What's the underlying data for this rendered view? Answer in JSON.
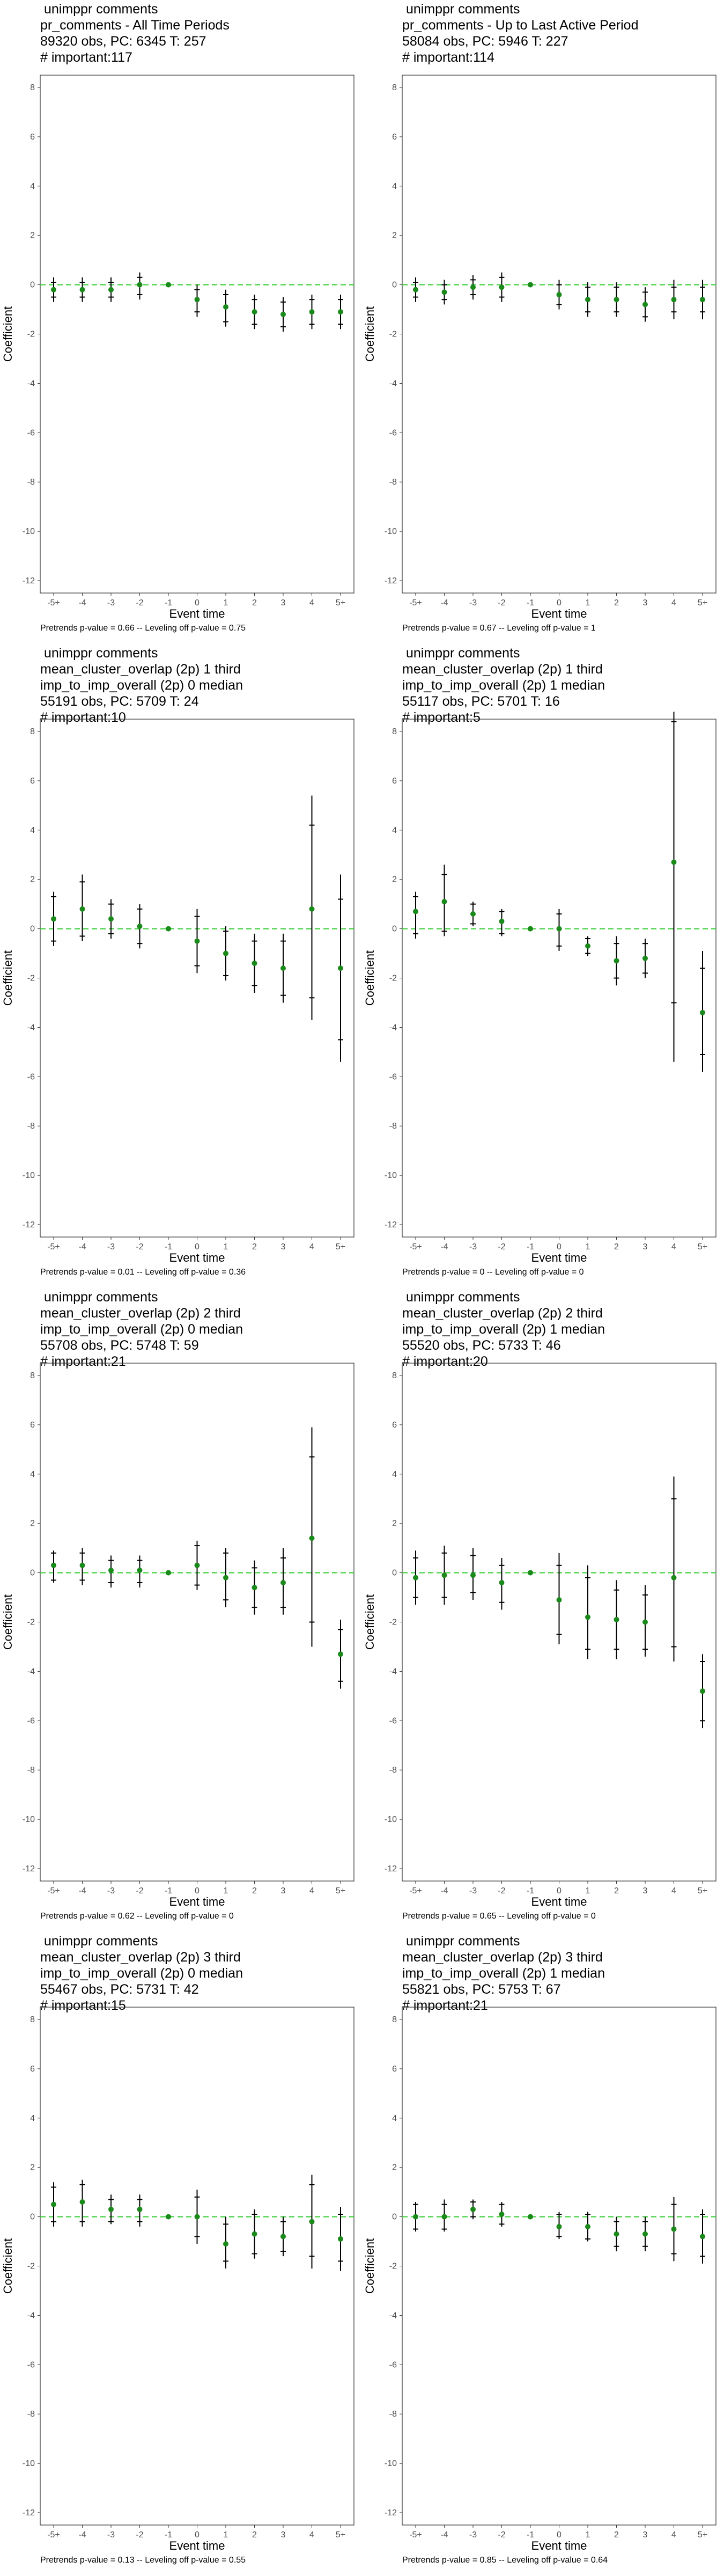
{
  "chart_data": [
    {
      "type": "scatter",
      "title": [
        " unimppr comments",
        "pr_comments - All Time Periods",
        "89320 obs, PC: 6345 T: 257",
        "# important:117"
      ],
      "footer": "Pretrends p-value = 0.66 -- Leveling off p-value = 0.75",
      "xlabel": "Event time",
      "ylabel": "Coefficient",
      "categories": [
        "-5+",
        "-4",
        "-3",
        "-2",
        "-1",
        "0",
        "1",
        "2",
        "3",
        "4",
        "5+"
      ],
      "yticks": [
        8,
        6,
        4,
        2,
        0,
        -2,
        -4,
        -6,
        -8,
        -10,
        -12
      ],
      "ylim": [
        -12.5,
        8.5
      ],
      "values": [
        -0.2,
        -0.2,
        -0.2,
        0.0,
        0.0,
        -0.6,
        -0.9,
        -1.1,
        -1.2,
        -1.1,
        -1.1
      ],
      "ci_low": [
        -0.7,
        -0.7,
        -0.7,
        -0.6,
        0.0,
        -1.3,
        -1.7,
        -1.8,
        -1.9,
        -1.8,
        -1.8
      ],
      "ci_high": [
        0.3,
        0.3,
        0.3,
        0.5,
        0.0,
        0.0,
        -0.2,
        -0.4,
        -0.5,
        -0.4,
        -0.4
      ],
      "ci90_low": [
        -0.5,
        -0.5,
        -0.5,
        -0.4,
        0.0,
        -1.1,
        -1.5,
        -1.6,
        -1.7,
        -1.6,
        -1.6
      ],
      "ci90_high": [
        0.1,
        0.1,
        0.1,
        0.3,
        0.0,
        -0.2,
        -0.4,
        -0.6,
        -0.7,
        -0.6,
        -0.6
      ],
      "reference_line": 0,
      "grid": false
    },
    {
      "type": "scatter",
      "title": [
        " unimppr comments",
        "pr_comments - Up to Last Active Period",
        "58084 obs, PC: 5946 T: 227",
        "# important:114"
      ],
      "footer": "Pretrends p-value = 0.67 -- Leveling off p-value = 1",
      "xlabel": "Event time",
      "ylabel": "Coefficient",
      "categories": [
        "-5+",
        "-4",
        "-3",
        "-2",
        "-1",
        "0",
        "1",
        "2",
        "3",
        "4",
        "5+"
      ],
      "yticks": [
        8,
        6,
        4,
        2,
        0,
        -2,
        -4,
        -6,
        -8,
        -10,
        -12
      ],
      "ylim": [
        -12.5,
        8.5
      ],
      "values": [
        -0.2,
        -0.3,
        -0.1,
        -0.1,
        0.0,
        -0.4,
        -0.6,
        -0.6,
        -0.8,
        -0.6,
        -0.6
      ],
      "ci_low": [
        -0.7,
        -0.8,
        -0.6,
        -0.7,
        0.0,
        -1.0,
        -1.3,
        -1.3,
        -1.5,
        -1.4,
        -1.4
      ],
      "ci_high": [
        0.3,
        0.2,
        0.4,
        0.5,
        0.0,
        0.2,
        0.1,
        0.1,
        -0.1,
        0.2,
        0.2
      ],
      "ci90_low": [
        -0.5,
        -0.6,
        -0.4,
        -0.5,
        0.0,
        -0.8,
        -1.1,
        -1.1,
        -1.3,
        -1.1,
        -1.1
      ],
      "ci90_high": [
        0.1,
        0.0,
        0.2,
        0.3,
        0.0,
        0.0,
        -0.1,
        -0.1,
        -0.3,
        -0.1,
        -0.1
      ],
      "reference_line": 0,
      "grid": false
    },
    {
      "type": "scatter",
      "title": [
        " unimppr comments",
        "mean_cluster_overlap (2p) 1 third",
        "imp_to_imp_overall (2p) 0 median",
        "55191 obs, PC: 5709 T: 24",
        "# important:10"
      ],
      "footer": "Pretrends p-value = 0.01 -- Leveling off p-value = 0.36",
      "xlabel": "Event time",
      "ylabel": "Coefficient",
      "categories": [
        "-5+",
        "-4",
        "-3",
        "-2",
        "-1",
        "0",
        "1",
        "2",
        "3",
        "4",
        "5+"
      ],
      "yticks": [
        8,
        6,
        4,
        2,
        0,
        -2,
        -4,
        -6,
        -8,
        -10,
        -12
      ],
      "ylim": [
        -12.5,
        8.5
      ],
      "values": [
        0.4,
        0.8,
        0.4,
        0.1,
        0.0,
        -0.5,
        -1.0,
        -1.4,
        -1.6,
        0.8,
        -1.6
      ],
      "ci_low": [
        -0.7,
        -0.5,
        -0.4,
        -0.8,
        0.0,
        -1.8,
        -2.1,
        -2.6,
        -3.0,
        -3.7,
        -5.4
      ],
      "ci_high": [
        1.5,
        2.2,
        1.2,
        1.0,
        0.0,
        0.8,
        0.1,
        -0.2,
        -0.2,
        5.4,
        2.2
      ],
      "ci90_low": [
        -0.5,
        -0.3,
        -0.2,
        -0.6,
        0.0,
        -1.5,
        -1.9,
        -2.3,
        -2.7,
        -2.8,
        -4.5
      ],
      "ci90_high": [
        1.3,
        1.9,
        1.0,
        0.8,
        0.0,
        0.5,
        -0.1,
        -0.5,
        -0.5,
        4.2,
        1.2
      ],
      "reference_line": 0,
      "grid": false
    },
    {
      "type": "scatter",
      "title": [
        " unimppr comments",
        "mean_cluster_overlap (2p) 1 third",
        "imp_to_imp_overall (2p) 1 median",
        "55117 obs, PC: 5701 T: 16",
        "# important:5"
      ],
      "footer": "Pretrends p-value = 0 -- Leveling off p-value = 0",
      "xlabel": "Event time",
      "ylabel": "Coefficient",
      "categories": [
        "-5+",
        "-4",
        "-3",
        "-2",
        "-1",
        "0",
        "1",
        "2",
        "3",
        "4",
        "5+"
      ],
      "yticks": [
        8,
        6,
        4,
        2,
        0,
        -2,
        -4,
        -6,
        -8,
        -10,
        -12
      ],
      "ylim": [
        -12.5,
        8.5
      ],
      "values": [
        0.7,
        1.1,
        0.6,
        0.3,
        0.0,
        0.0,
        -0.7,
        -1.3,
        -1.2,
        2.7,
        -3.4
      ],
      "ci_low": [
        -0.4,
        -0.3,
        0.1,
        -0.3,
        0.0,
        -0.9,
        -1.1,
        -2.3,
        -2.0,
        -5.4,
        -5.8
      ],
      "ci_high": [
        1.5,
        2.6,
        1.1,
        0.8,
        0.0,
        0.8,
        -0.3,
        -0.3,
        -0.4,
        8.8,
        -0.9
      ],
      "ci90_low": [
        -0.2,
        -0.1,
        0.2,
        -0.2,
        0.0,
        -0.7,
        -1.0,
        -2.0,
        -1.8,
        -3.0,
        -5.1
      ],
      "ci90_high": [
        1.3,
        2.2,
        1.0,
        0.7,
        0.0,
        0.6,
        -0.4,
        -0.6,
        -0.6,
        8.4,
        -1.6
      ],
      "reference_line": 0,
      "grid": false
    },
    {
      "type": "scatter",
      "title": [
        " unimppr comments",
        "mean_cluster_overlap (2p) 2 third",
        "imp_to_imp_overall (2p) 0 median",
        "55708 obs, PC: 5748 T: 59",
        "# important:21"
      ],
      "footer": "Pretrends p-value = 0.62 -- Leveling off p-value = 0",
      "xlabel": "Event time",
      "ylabel": "Coefficient",
      "categories": [
        "-5+",
        "-4",
        "-3",
        "-2",
        "-1",
        "0",
        "1",
        "2",
        "3",
        "4",
        "5+"
      ],
      "yticks": [
        8,
        6,
        4,
        2,
        0,
        -2,
        -4,
        -6,
        -8,
        -10,
        -12
      ],
      "ylim": [
        -12.5,
        8.5
      ],
      "values": [
        0.3,
        0.3,
        0.1,
        0.1,
        0.0,
        0.3,
        -0.2,
        -0.6,
        -0.4,
        1.4,
        -3.3
      ],
      "ci_low": [
        -0.4,
        -0.5,
        -0.6,
        -0.6,
        0.0,
        -0.7,
        -1.4,
        -1.7,
        -1.7,
        -3.0,
        -4.7
      ],
      "ci_high": [
        0.9,
        1.0,
        0.7,
        0.7,
        0.0,
        1.3,
        1.0,
        0.5,
        1.0,
        5.9,
        -1.9
      ],
      "ci90_low": [
        -0.3,
        -0.3,
        -0.4,
        -0.4,
        0.0,
        -0.5,
        -1.1,
        -1.4,
        -1.4,
        -2.0,
        -4.4
      ],
      "ci90_high": [
        0.8,
        0.8,
        0.5,
        0.5,
        0.0,
        1.1,
        0.8,
        0.2,
        0.6,
        4.7,
        -2.3
      ],
      "reference_line": 0,
      "grid": false
    },
    {
      "type": "scatter",
      "title": [
        " unimppr comments",
        "mean_cluster_overlap (2p) 2 third",
        "imp_to_imp_overall (2p) 1 median",
        "55520 obs, PC: 5733 T: 46",
        "# important:20"
      ],
      "footer": "Pretrends p-value = 0.65 -- Leveling off p-value = 0",
      "xlabel": "Event time",
      "ylabel": "Coefficient",
      "categories": [
        "-5+",
        "-4",
        "-3",
        "-2",
        "-1",
        "0",
        "1",
        "2",
        "3",
        "4",
        "5+"
      ],
      "yticks": [
        8,
        6,
        4,
        2,
        0,
        -2,
        -4,
        -6,
        -8,
        -10,
        -12
      ],
      "ylim": [
        -12.5,
        8.5
      ],
      "values": [
        -0.2,
        -0.1,
        -0.1,
        -0.4,
        0.0,
        -1.1,
        -1.8,
        -1.9,
        -2.0,
        -0.2,
        -4.8
      ],
      "ci_low": [
        -1.3,
        -1.3,
        -1.1,
        -1.5,
        0.0,
        -2.9,
        -3.5,
        -3.5,
        -3.4,
        -3.6,
        -6.3
      ],
      "ci_high": [
        0.9,
        1.1,
        1.0,
        0.6,
        0.0,
        0.8,
        0.3,
        -0.3,
        -0.5,
        3.9,
        -3.3
      ],
      "ci90_low": [
        -1.0,
        -1.0,
        -0.8,
        -1.2,
        0.0,
        -2.5,
        -3.1,
        -3.1,
        -3.1,
        -3.0,
        -6.0
      ],
      "ci90_high": [
        0.6,
        0.8,
        0.7,
        0.3,
        0.0,
        0.3,
        -0.2,
        -0.7,
        -0.9,
        3.0,
        -3.6
      ],
      "reference_line": 0,
      "grid": false
    },
    {
      "type": "scatter",
      "title": [
        " unimppr comments",
        "mean_cluster_overlap (2p) 3 third",
        "imp_to_imp_overall (2p) 0 median",
        "55467 obs, PC: 5731 T: 42",
        "# important:15"
      ],
      "footer": "Pretrends p-value = 0.13 -- Leveling off p-value = 0.55",
      "xlabel": "Event time",
      "ylabel": "Coefficient",
      "categories": [
        "-5+",
        "-4",
        "-3",
        "-2",
        "-1",
        "0",
        "1",
        "2",
        "3",
        "4",
        "5+"
      ],
      "yticks": [
        8,
        6,
        4,
        2,
        0,
        -2,
        -4,
        -6,
        -8,
        -10,
        -12
      ],
      "ylim": [
        -12.5,
        8.5
      ],
      "values": [
        0.5,
        0.6,
        0.3,
        0.3,
        0.0,
        0.0,
        -1.1,
        -0.7,
        -0.8,
        -0.2,
        -0.9
      ],
      "ci_low": [
        -0.4,
        -0.4,
        -0.3,
        -0.4,
        0.0,
        -1.1,
        -2.1,
        -1.7,
        -1.6,
        -2.1,
        -2.2
      ],
      "ci_high": [
        1.4,
        1.5,
        0.9,
        0.9,
        0.0,
        1.1,
        0.0,
        0.3,
        0.0,
        1.7,
        0.4
      ],
      "ci90_low": [
        -0.2,
        -0.2,
        -0.2,
        -0.2,
        0.0,
        -0.8,
        -1.8,
        -1.5,
        -1.4,
        -1.6,
        -1.8
      ],
      "ci90_high": [
        1.2,
        1.3,
        0.7,
        0.7,
        0.0,
        0.8,
        -0.3,
        0.1,
        -0.2,
        1.3,
        0.1
      ],
      "reference_line": 0,
      "grid": false
    },
    {
      "type": "scatter",
      "title": [
        " unimppr comments",
        "mean_cluster_overlap (2p) 3 third",
        "imp_to_imp_overall (2p) 1 median",
        "55821 obs, PC: 5753 T: 67",
        "# important:21"
      ],
      "footer": "Pretrends p-value = 0.85 -- Leveling off p-value = 0.64",
      "xlabel": "Event time",
      "ylabel": "Coefficient",
      "categories": [
        "-5+",
        "-4",
        "-3",
        "-2",
        "-1",
        "0",
        "1",
        "2",
        "3",
        "4",
        "5+"
      ],
      "yticks": [
        8,
        6,
        4,
        2,
        0,
        -2,
        -4,
        -6,
        -8,
        -10,
        -12
      ],
      "ylim": [
        -12.5,
        8.5
      ],
      "values": [
        0.0,
        0.0,
        0.3,
        0.1,
        0.0,
        -0.4,
        -0.4,
        -0.7,
        -0.7,
        -0.5,
        -0.8
      ],
      "ci_low": [
        -0.6,
        -0.6,
        -0.1,
        -0.4,
        0.0,
        -0.9,
        -1.0,
        -1.4,
        -1.4,
        -1.8,
        -1.9
      ],
      "ci_high": [
        0.6,
        0.7,
        0.7,
        0.6,
        0.0,
        0.2,
        0.2,
        0.0,
        0.0,
        0.8,
        0.3
      ],
      "ci90_low": [
        -0.5,
        -0.5,
        0.0,
        -0.3,
        0.0,
        -0.8,
        -0.9,
        -1.2,
        -1.2,
        -1.5,
        -1.6
      ],
      "ci90_high": [
        0.5,
        0.5,
        0.6,
        0.5,
        0.0,
        0.1,
        0.1,
        -0.2,
        -0.2,
        0.5,
        0.1
      ],
      "reference_line": 0,
      "grid": false
    }
  ],
  "colors": {
    "point": "#1a8a1a",
    "reference_line": "#33cc33",
    "errorbar": "#000000",
    "frame": "#333333"
  }
}
